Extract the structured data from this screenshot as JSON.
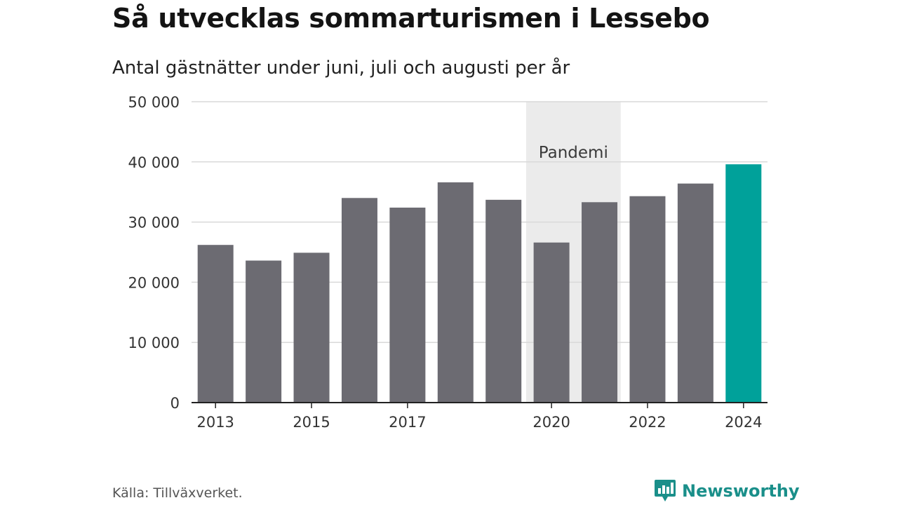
{
  "title": "Så utvecklas sommarturismen i Lessebo",
  "subtitle": "Antal gästnätter under juni, juli och augusti per år",
  "source": "Källa: Tillväxverket.",
  "brand": {
    "name": "Newsworthy",
    "icon": "newsworthy-logo-icon",
    "color": "#1a8f8a"
  },
  "chart_data": {
    "type": "bar",
    "categories": [
      "2013",
      "2014",
      "2015",
      "2016",
      "2017",
      "2018",
      "2019",
      "2020",
      "2021",
      "2022",
      "2023",
      "2024"
    ],
    "values": [
      26200,
      23600,
      24900,
      34000,
      32400,
      36600,
      33700,
      26600,
      33300,
      34300,
      36400,
      39600
    ],
    "x_tick_labels": [
      "2013",
      "2015",
      "2017",
      "2020",
      "2022",
      "2024"
    ],
    "y_ticks": [
      0,
      10000,
      20000,
      30000,
      40000,
      50000
    ],
    "y_tick_labels": [
      "0",
      "10 000",
      "20 000",
      "30 000",
      "40 000",
      "50 000"
    ],
    "ylim": [
      0,
      50000
    ],
    "highlight": {
      "category": "2024",
      "color": "#00a19a"
    },
    "bar_color": "#6c6b72",
    "annotation": {
      "label": "Pandemi",
      "from": "2020",
      "to": "2021",
      "color": "#ebebeb"
    },
    "grid": true
  }
}
